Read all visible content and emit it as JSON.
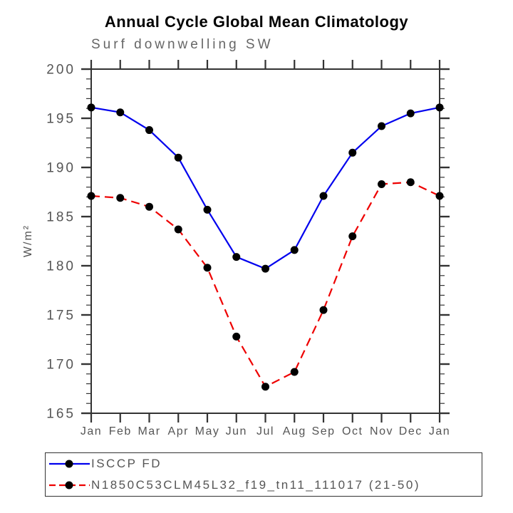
{
  "title": "Annual Cycle Global Mean Climatology",
  "subtitle": "Surf downwelling SW",
  "colors": {
    "series1": "#0000ee",
    "series2": "#ee0000",
    "marker": "#000000",
    "axis": "#333333",
    "tick_label": "#555555",
    "subtitle_text": "#666666"
  },
  "chart_data": {
    "type": "line",
    "title": "Annual Cycle Global Mean Climatology",
    "subtitle": "Surf downwelling SW",
    "ylabel": "W/m²",
    "xlabel": "",
    "categories": [
      "Jan",
      "Feb",
      "Mar",
      "Apr",
      "May",
      "Jun",
      "Jul",
      "Aug",
      "Sep",
      "Oct",
      "Nov",
      "Dec",
      "Jan"
    ],
    "ylim": [
      165,
      200
    ],
    "y_major_step": 5,
    "y_minor_step": 1,
    "y_major_ticks": [
      165,
      170,
      175,
      180,
      185,
      190,
      195,
      200
    ],
    "grid": "off",
    "legend_position": "bottom-box",
    "series": [
      {
        "name": "ISCCP FD",
        "style": "solid",
        "color": "#0000ee",
        "marker": "black-dot",
        "values": [
          196.1,
          195.6,
          193.8,
          191.0,
          185.7,
          180.9,
          179.7,
          181.6,
          187.1,
          191.5,
          194.2,
          195.5,
          196.1
        ]
      },
      {
        "name": "N1850C53CLM45L32_f19_tn11_111017 (21-50)",
        "style": "dashed",
        "color": "#ee0000",
        "marker": "black-dot",
        "values": [
          187.1,
          186.9,
          186.0,
          183.7,
          179.8,
          172.8,
          167.7,
          169.2,
          175.5,
          183.0,
          188.3,
          188.5,
          187.1
        ]
      }
    ]
  }
}
